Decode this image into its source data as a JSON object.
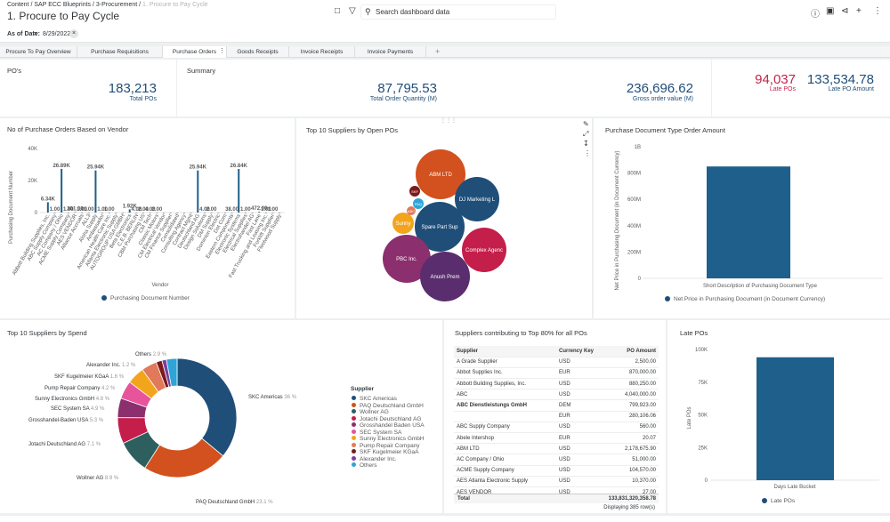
{
  "breadcrumb": [
    "Content",
    "SAP ECC Blueprints",
    "3-Procurement",
    "1. Procure to Pay Cycle"
  ],
  "page_title": "1. Procure to Pay Cycle",
  "search": {
    "placeholder": "Search dashboard data"
  },
  "filter": {
    "label": "As of Date:",
    "op": "=",
    "value": "8/29/2022"
  },
  "tabs": [
    "Procure To Pay Overview",
    "Purchase Requisitions",
    "Purchase Orders",
    "Goods Receipts",
    "Invoice Receipts",
    "Invoice Payments"
  ],
  "kpi": {
    "pos": {
      "title": "PO's",
      "value": "183,213",
      "label": "Total POs"
    },
    "summary": {
      "title": "Summary",
      "qty_value": "87,795.53",
      "qty_label": "Total Order Quantity (M)",
      "gross_value": "236,696.62",
      "gross_label": "Gross order value (M)"
    },
    "late": {
      "late_value": "94,037",
      "late_label": "Late POs",
      "amt_value": "133,534.78",
      "amt_label": "Late PO Amount"
    }
  },
  "vendor_chart": {
    "title": "No of Purchase Orders Based on Vendor",
    "ylabel": "Purchasing Document Number",
    "xlabel": "Vendor",
    "legend": "Purchasing Document Number",
    "yticks": [
      "0",
      "20K",
      "40K"
    ]
  },
  "bubble_chart": {
    "title": "Top 10 Suppliers by Open POs"
  },
  "doctype_chart": {
    "title": "Purchase Document Type Order Amount",
    "ylabel": "Net Price in Purchasing Document (in Document Currency)",
    "xlabel": "Short Description of Purchasing Document Type",
    "legend": "Net Price in Purchasing Document (in Document Currency)",
    "yticks": [
      "0",
      "200M",
      "400M",
      "600M",
      "800M",
      "1B"
    ]
  },
  "spend_chart": {
    "title": "Top 10 Suppliers by Spend",
    "legend_title": "Supplier"
  },
  "table": {
    "title": "Suppliers contributing to Top 80% for all POs",
    "headers": [
      "Supplier",
      "Currency Key",
      "PO Amount"
    ],
    "rows": [
      [
        "A Grade Supplier",
        "USD",
        "2,500.00"
      ],
      [
        "Abbot Supplies Inc.",
        "EUR",
        "870,000.00"
      ],
      [
        "Abbott Building Supplies, Inc.",
        "USD",
        "880,250.00"
      ],
      [
        "ABC",
        "USD",
        "4,040,000.00"
      ],
      [
        "ABC Dienstleistungs GmbH",
        "DEM",
        "799,923.00"
      ],
      [
        "",
        "EUR",
        "280,106.06"
      ],
      [
        "ABC Supply Company",
        "USD",
        "560.00"
      ],
      [
        "Abele Intershop",
        "EUR",
        "20.07"
      ],
      [
        "ABM LTD",
        "USD",
        "2,178,675.90"
      ],
      [
        "AC Company / Ohio",
        "USD",
        "51,000.00"
      ],
      [
        "ACME Supply Company",
        "USD",
        "104,570.00"
      ],
      [
        "AES Atlanta Electronic Supply",
        "USD",
        "10,370.00"
      ],
      [
        "AES VENDOR",
        "USD",
        "27.00"
      ]
    ],
    "total_label": "Total",
    "total_value": "133,831,320,358.78",
    "footer": "Displaying 385 row(s)"
  },
  "late_chart": {
    "title": "Late POs",
    "ylabel": "Late POs",
    "xlabel": "Days Late Bucket",
    "legend": "Late POs",
    "yticks": [
      "0",
      "25K",
      "50K",
      "75K",
      "100K"
    ]
  },
  "chart_data": [
    {
      "type": "bar",
      "title": "No of Purchase Orders Based on Vendor",
      "xlabel": "Vendor",
      "ylabel": "Purchasing Document Number",
      "ylim": [
        0,
        40000
      ],
      "legend_position": "bottom",
      "categories": [
        "Abbott Building Supplies, Inc.",
        "ABC Supply Company",
        "AC Company / Ohio",
        "ACME Supply Company",
        "AES VENDOR",
        "Alliance Accruals",
        "ALL3",
        "Aloha Supply",
        "Ambassador",
        "American Health Care Inc.",
        "Atlanta Electronic Supply",
        "AUTOGROUP USA GMBH",
        "Beta Electronics",
        "C.E.B. BERLIN",
        "CBM Purchasing US",
        "CM Tech",
        "Classic Motors",
        "CM Electrical Vendor",
        "CM Finance Supplier",
        "Consolidated",
        "Consulting Agency",
        "Contract Mgmt",
        "Deutschland AG",
        "Design Solutions",
        "DM Supply",
        "Dominion Electric",
        "Dot Com",
        "Eastern Components",
        "Electronic Systems",
        "Electrical Supplies",
        "Electrohandel AG",
        "Fast Lane",
        "Fast Trucking and Leasing Inc.",
        "Forklift Supplier",
        "Fleetwood Supply"
      ],
      "values": [
        6340,
        1,
        26890,
        1,
        301,
        1,
        1,
        25940,
        1,
        1,
        1,
        1,
        1920,
        1,
        4,
        2,
        4,
        2,
        1,
        1,
        1,
        4,
        25940,
        2,
        4,
        2,
        1,
        38,
        26840,
        1,
        1,
        472,
        1,
        1,
        1
      ]
    },
    {
      "type": "scatter",
      "subtype": "bubble",
      "title": "Top 10 Suppliers by Open POs",
      "series": [
        {
          "name": "ABM LTD",
          "value": 100
        },
        {
          "name": "DJ Marketing L",
          "value": 85
        },
        {
          "name": "Spare Part Sup",
          "value": 95
        },
        {
          "name": "Complex Agenc",
          "value": 80
        },
        {
          "name": "PBC Inc.",
          "value": 90
        },
        {
          "name": "Anush Prem",
          "value": 85
        },
        {
          "name": "Sunny",
          "value": 15
        },
        {
          "name": "PAQ",
          "value": 6
        },
        {
          "name": "SKF",
          "value": 4
        },
        {
          "name": "ABC",
          "value": 3
        }
      ]
    },
    {
      "type": "bar",
      "title": "Purchase Document Type Order Amount",
      "xlabel": "Short Description of Purchasing Document Type",
      "ylabel": "Net Price in Purchasing Document (in Document Currency)",
      "ylim": [
        0,
        1000000000
      ],
      "legend_position": "bottom",
      "categories": [
        ""
      ],
      "values": [
        850000000
      ]
    },
    {
      "type": "pie",
      "subtype": "donut",
      "title": "Top 10 Suppliers by Spend",
      "legend_title": "Supplier",
      "legend_position": "right",
      "slices": [
        {
          "name": "SKC Americas",
          "value": 36.0,
          "color": "#1f4e79",
          "label": "SKC Americas",
          "pct": "36 %"
        },
        {
          "name": "PAQ Deutschland GmbH",
          "value": 23.1,
          "color": "#d2511f",
          "label": "PAQ Deutschland GmbH",
          "pct": "23.1 %"
        },
        {
          "name": "Wollner AG",
          "value": 8.9,
          "color": "#2e5f5f",
          "label": "Wollner AG",
          "pct": "8.9 %"
        },
        {
          "name": "Jotachi Deutschland AG",
          "value": 7.1,
          "color": "#c41e4a",
          "label": "Jotachi Deutschland AG",
          "pct": "7.1 %"
        },
        {
          "name": "Grosshandel Baden USA",
          "value": 5.3,
          "color": "#8b2f6e",
          "label": "Grosshandel-Baden USA",
          "pct": "5.3 %"
        },
        {
          "name": "SEC System SA",
          "value": 4.9,
          "color": "#e8549b",
          "label": "SEC System SA",
          "pct": "4.9 %"
        },
        {
          "name": "Sunny Electronics GmbH",
          "value": 4.8,
          "color": "#f2a51c",
          "label": "Sunny Electronics GmbH",
          "pct": "4.8 %"
        },
        {
          "name": "Pump Repair Company",
          "value": 4.2,
          "color": "#e07a5a",
          "label": "Pump Repair Company",
          "pct": "4.2 %"
        },
        {
          "name": "SKF Kugelmeier KGaA",
          "value": 1.6,
          "color": "#7a1a1a",
          "label": "SKF Kugelmeier KGaA",
          "pct": "1.6 %"
        },
        {
          "name": "Alexander Inc.",
          "value": 1.2,
          "color": "#7a3fa0",
          "label": "Alexander Inc.",
          "pct": "1.2 %"
        },
        {
          "name": "Others",
          "value": 2.9,
          "color": "#2ea5d6",
          "label": "Others",
          "pct": "2.9 %"
        }
      ]
    },
    {
      "type": "bar",
      "title": "Late POs",
      "xlabel": "Days Late Bucket",
      "ylabel": "Late POs",
      "ylim": [
        0,
        100000
      ],
      "legend_position": "bottom",
      "categories": [
        ""
      ],
      "values": [
        94037
      ]
    }
  ],
  "vendor_labels": [
    "6.34K",
    "1.00",
    "26.89K",
    "1.00",
    "301.00",
    "1.00",
    "1.00",
    "25.94K",
    "1.00",
    "1.00",
    "1.92K",
    "4.00",
    "2.00",
    "4.00",
    "2.00",
    "25.94K",
    "4.00",
    "2.00",
    "38.00",
    "26.84K",
    "1.00",
    "472.00",
    "1.00",
    "1.00"
  ],
  "colors": {
    "accent": "#1f4e79",
    "alert": "#c0264b",
    "bar": "#1f5f8b"
  }
}
